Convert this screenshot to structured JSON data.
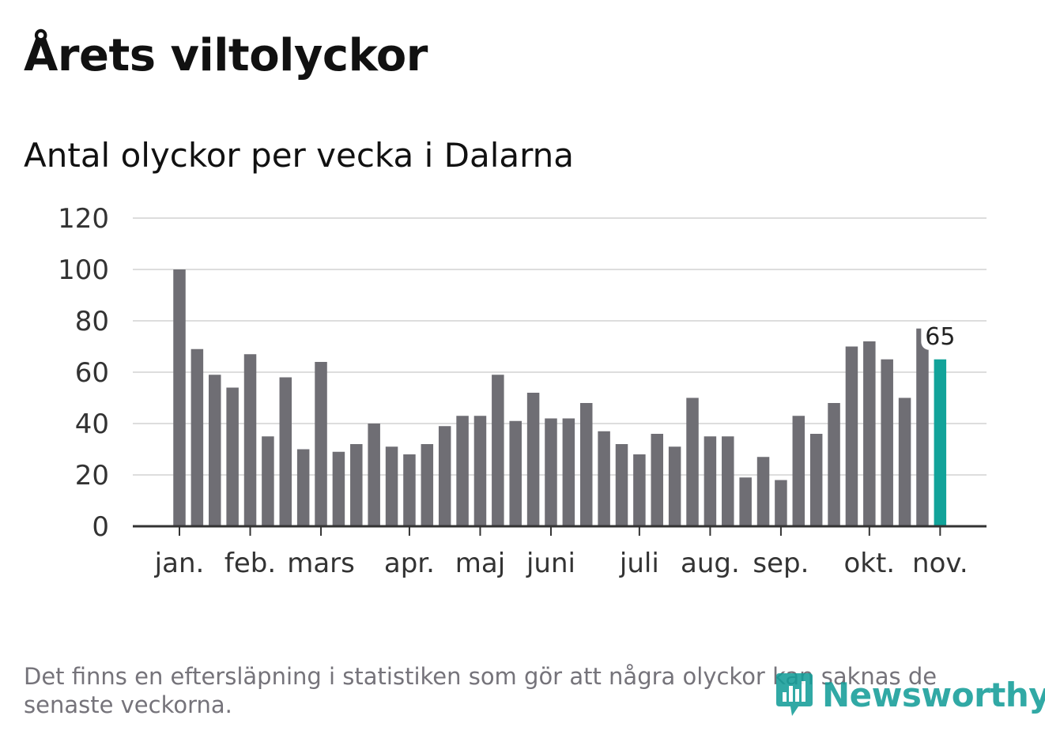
{
  "title": "Årets viltolyckor",
  "subtitle": "Antal olyckor per vecka i Dalarna",
  "footnote": "Det finns en eftersläpning i statistiken som gör att några olyckor kan saknas de senaste veckorna.",
  "logo": {
    "text": "Newsworthy",
    "icon": "newsworthy-chart-icon",
    "color": "#159e99"
  },
  "colors": {
    "bar": "#6f6e74",
    "highlight": "#12a39a",
    "grid": "#dddddd",
    "axis": "#333333",
    "text": "#333333"
  },
  "chart_data": {
    "type": "bar",
    "title": "Antal olyckor per vecka i Dalarna",
    "xlabel": "",
    "ylabel": "",
    "ylim": [
      0,
      120
    ],
    "yticks": [
      0,
      20,
      40,
      60,
      80,
      100,
      120
    ],
    "grid": true,
    "values": [
      100,
      69,
      59,
      54,
      67,
      35,
      58,
      30,
      64,
      29,
      32,
      40,
      31,
      28,
      32,
      39,
      43,
      43,
      59,
      41,
      52,
      42,
      42,
      48,
      37,
      32,
      28,
      36,
      31,
      50,
      35,
      35,
      19,
      27,
      18,
      43,
      36,
      48,
      70,
      72,
      65,
      50,
      77,
      65
    ],
    "highlight_index": 43,
    "highlight_label": "65",
    "month_labels": [
      {
        "label": "jan.",
        "index": 0
      },
      {
        "label": "feb.",
        "index": 4
      },
      {
        "label": "mars",
        "index": 8
      },
      {
        "label": "apr.",
        "index": 13
      },
      {
        "label": "maj",
        "index": 17
      },
      {
        "label": "juni",
        "index": 21
      },
      {
        "label": "juli",
        "index": 26
      },
      {
        "label": "aug.",
        "index": 30
      },
      {
        "label": "sep.",
        "index": 34
      },
      {
        "label": "okt.",
        "index": 39
      },
      {
        "label": "nov.",
        "index": 43
      }
    ]
  }
}
